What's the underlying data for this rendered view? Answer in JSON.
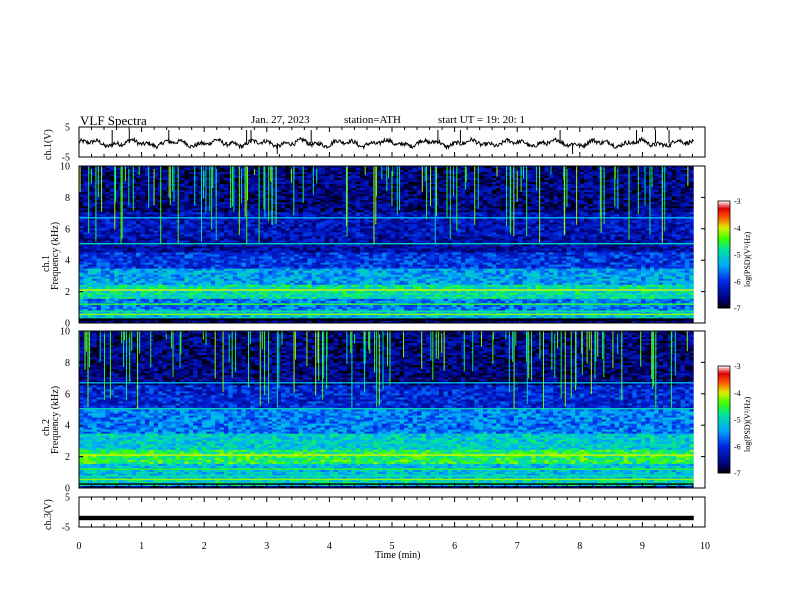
{
  "header": {
    "title": "VLF Spectra",
    "date": "Jan. 27, 2023",
    "station": "station=ATH",
    "start": "start UT =  19: 20: 1"
  },
  "chart_data": [
    {
      "type": "line",
      "name": "ch1-waveform",
      "ylabel": "ch.1(V)",
      "ylim": [
        -5,
        5
      ],
      "yticks": [
        "5",
        "-5"
      ],
      "xlim": [
        0,
        10
      ]
    },
    {
      "type": "heatmap",
      "name": "ch1-spectrogram",
      "ylabel_top": "ch.1",
      "ylabel": "Frequency (kHz)",
      "ylim": [
        0,
        10
      ],
      "yticks": [
        "10",
        "8",
        "6",
        "4",
        "2",
        "0"
      ],
      "xlim": [
        0,
        10
      ],
      "colorbar": {
        "label": "log(PSD)(V²/Hz)",
        "ticks": [
          "-3",
          "-4",
          "-5",
          "-6",
          "-7"
        ],
        "range": [
          -7,
          -3
        ]
      },
      "bands_khz": [
        {
          "f0": 0.1,
          "f1": 0.3,
          "level": -7.0
        },
        {
          "f0": 0.3,
          "f1": 0.8,
          "level": -5.2
        },
        {
          "f0": 0.8,
          "f1": 1.5,
          "level": -5.6
        },
        {
          "f0": 1.5,
          "f1": 2.5,
          "level": -4.9
        },
        {
          "f0": 2.5,
          "f1": 3.5,
          "level": -5.4
        },
        {
          "f0": 3.5,
          "f1": 4.5,
          "level": -6.0
        },
        {
          "f0": 4.5,
          "f1": 5.5,
          "level": -6.4
        },
        {
          "f0": 5.5,
          "f1": 7.0,
          "level": -6.3
        },
        {
          "f0": 7.0,
          "f1": 10.0,
          "level": -6.6
        }
      ]
    },
    {
      "type": "heatmap",
      "name": "ch2-spectrogram",
      "ylabel_top": "ch.2",
      "ylabel": "Frequency (kHz)",
      "ylim": [
        0,
        10
      ],
      "yticks": [
        "10",
        "8",
        "6",
        "4",
        "2",
        "0"
      ],
      "xlim": [
        0,
        10
      ],
      "colorbar": {
        "label": "log(PSD)(V²/Hz)",
        "ticks": [
          "-3",
          "-4",
          "-5",
          "-6",
          "-7"
        ],
        "range": [
          -7,
          -3
        ]
      },
      "bands_khz": [
        {
          "f0": 0.1,
          "f1": 0.5,
          "level": -5.0
        },
        {
          "f0": 0.5,
          "f1": 1.5,
          "level": -5.2
        },
        {
          "f0": 1.5,
          "f1": 2.5,
          "level": -4.6
        },
        {
          "f0": 2.5,
          "f1": 3.5,
          "level": -5.1
        },
        {
          "f0": 3.5,
          "f1": 5.0,
          "level": -5.6
        },
        {
          "f0": 5.0,
          "f1": 6.5,
          "level": -6.1
        },
        {
          "f0": 6.5,
          "f1": 10.0,
          "level": -6.6
        }
      ]
    },
    {
      "type": "line",
      "name": "ch3-waveform",
      "ylabel": "ch.3(V)",
      "ylim": [
        -5,
        5
      ],
      "yticks": [
        "5",
        "-5"
      ],
      "xlim": [
        0,
        10
      ],
      "level": -2
    }
  ],
  "xaxis": {
    "label": "Time (min)",
    "ticks": [
      "0",
      "1",
      "2",
      "3",
      "4",
      "5",
      "6",
      "7",
      "8",
      "9",
      "10"
    ]
  }
}
